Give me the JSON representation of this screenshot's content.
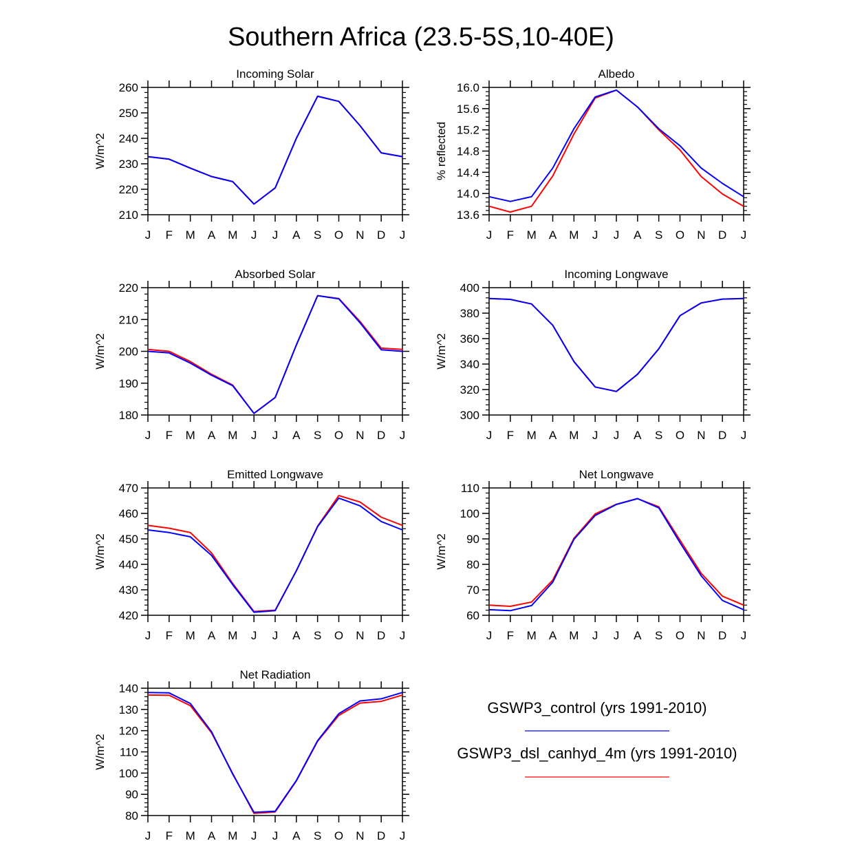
{
  "title": "Southern Africa (23.5-5S,10-40E)",
  "colors": {
    "control": "#0000ff",
    "experiment": "#ff0000",
    "axis": "#000000"
  },
  "legend": {
    "entries": [
      {
        "label": "GSWP3_control (yrs 1991-2010)",
        "color": "#0000ff"
      },
      {
        "label": "GSWP3_dsl_canhyd_4m (yrs 1991-2010)",
        "color": "#ff0000"
      }
    ]
  },
  "chart_data": [
    {
      "type": "line",
      "title": "Incoming Solar",
      "ylabel": "W/m^2",
      "categories": [
        "J",
        "F",
        "M",
        "A",
        "M",
        "J",
        "J",
        "A",
        "S",
        "O",
        "N",
        "D",
        "J"
      ],
      "ylim": [
        210,
        260
      ],
      "yticks": [
        "210",
        "220",
        "230",
        "240",
        "250",
        "260"
      ],
      "series": [
        {
          "name": "GSWP3_control (yrs 1991-2010)",
          "color": "#0000ff",
          "values": [
            232.8,
            231.8,
            228.3,
            225.0,
            223.0,
            214.2,
            220.5,
            240.0,
            256.5,
            254.5,
            245.0,
            234.3,
            232.8
          ]
        },
        {
          "name": "GSWP3_dsl_canhyd_4m (yrs 1991-2010)",
          "color": "#ff0000",
          "values": [
            232.8,
            231.8,
            228.3,
            225.0,
            223.0,
            214.2,
            220.5,
            240.0,
            256.5,
            254.5,
            245.0,
            234.3,
            232.8
          ]
        }
      ]
    },
    {
      "type": "line",
      "title": "Albedo",
      "ylabel": "% reflected",
      "categories": [
        "J",
        "F",
        "M",
        "A",
        "M",
        "J",
        "J",
        "A",
        "S",
        "O",
        "N",
        "D",
        "J"
      ],
      "ylim": [
        13.6,
        16.0
      ],
      "yticks": [
        "13.6",
        "14.0",
        "14.4",
        "14.8",
        "15.2",
        "15.6",
        "16.0"
      ],
      "series": [
        {
          "name": "GSWP3_control (yrs 1991-2010)",
          "color": "#0000ff",
          "values": [
            13.94,
            13.85,
            13.94,
            14.48,
            15.22,
            15.82,
            15.95,
            15.63,
            15.22,
            14.9,
            14.48,
            14.19,
            13.94
          ]
        },
        {
          "name": "GSWP3_dsl_canhyd_4m (yrs 1991-2010)",
          "color": "#ff0000",
          "values": [
            13.76,
            13.65,
            13.76,
            14.33,
            15.12,
            15.8,
            15.95,
            15.63,
            15.2,
            14.82,
            14.32,
            13.99,
            13.76
          ]
        }
      ]
    },
    {
      "type": "line",
      "title": "Absorbed Solar",
      "ylabel": "W/m^2",
      "categories": [
        "J",
        "F",
        "M",
        "A",
        "M",
        "J",
        "J",
        "A",
        "S",
        "O",
        "N",
        "D",
        "J"
      ],
      "ylim": [
        180,
        220
      ],
      "yticks": [
        "180",
        "190",
        "200",
        "210",
        "220"
      ],
      "series": [
        {
          "name": "GSWP3_control (yrs 1991-2010)",
          "color": "#0000ff",
          "values": [
            200.0,
            199.5,
            196.3,
            192.5,
            189.2,
            180.5,
            185.5,
            202.0,
            217.5,
            216.5,
            209.0,
            200.5,
            200.0
          ]
        },
        {
          "name": "GSWP3_dsl_canhyd_4m (yrs 1991-2010)",
          "color": "#ff0000",
          "values": [
            200.6,
            200.0,
            196.8,
            192.8,
            189.4,
            180.5,
            185.5,
            202.0,
            217.5,
            216.6,
            209.4,
            201.0,
            200.6
          ]
        }
      ]
    },
    {
      "type": "line",
      "title": "Incoming Longwave",
      "ylabel": "W/m^2",
      "categories": [
        "J",
        "F",
        "M",
        "A",
        "M",
        "J",
        "J",
        "A",
        "S",
        "O",
        "N",
        "D",
        "J"
      ],
      "ylim": [
        300,
        400
      ],
      "yticks": [
        "300",
        "320",
        "340",
        "360",
        "380",
        "400"
      ],
      "series": [
        {
          "name": "GSWP3_control (yrs 1991-2010)",
          "color": "#0000ff",
          "values": [
            391.5,
            390.8,
            387.2,
            370.5,
            342.0,
            322.0,
            318.5,
            332.0,
            352.0,
            378.0,
            388.0,
            391.0,
            391.5
          ]
        },
        {
          "name": "GSWP3_dsl_canhyd_4m (yrs 1991-2010)",
          "color": "#ff0000",
          "values": [
            391.5,
            390.8,
            387.2,
            370.5,
            342.0,
            322.0,
            318.5,
            332.0,
            352.0,
            378.0,
            388.0,
            391.0,
            391.5
          ]
        }
      ]
    },
    {
      "type": "line",
      "title": "Emitted Longwave",
      "ylabel": "W/m^2",
      "categories": [
        "J",
        "F",
        "M",
        "A",
        "M",
        "J",
        "J",
        "A",
        "S",
        "O",
        "N",
        "D",
        "J"
      ],
      "ylim": [
        420,
        470
      ],
      "yticks": [
        "420",
        "430",
        "440",
        "450",
        "460",
        "470"
      ],
      "series": [
        {
          "name": "GSWP3_control (yrs 1991-2010)",
          "color": "#0000ff",
          "values": [
            453.5,
            452.5,
            450.8,
            443.5,
            432.0,
            421.2,
            421.8,
            437.5,
            454.8,
            466.0,
            463.0,
            456.8,
            453.5
          ]
        },
        {
          "name": "GSWP3_dsl_canhyd_4m (yrs 1991-2010)",
          "color": "#ff0000",
          "values": [
            455.3,
            454.2,
            452.5,
            444.5,
            432.5,
            421.5,
            422.0,
            437.5,
            455.0,
            467.0,
            464.5,
            458.5,
            455.3
          ]
        }
      ]
    },
    {
      "type": "line",
      "title": "Net Longwave",
      "ylabel": "W/m^2",
      "categories": [
        "J",
        "F",
        "M",
        "A",
        "M",
        "J",
        "J",
        "A",
        "S",
        "O",
        "N",
        "D",
        "J"
      ],
      "ylim": [
        60,
        110
      ],
      "yticks": [
        "60",
        "70",
        "80",
        "90",
        "100",
        "110"
      ],
      "series": [
        {
          "name": "GSWP3_control (yrs 1991-2010)",
          "color": "#0000ff",
          "values": [
            62.2,
            61.8,
            63.8,
            73.0,
            89.8,
            99.2,
            103.5,
            105.8,
            102.2,
            88.5,
            75.5,
            65.8,
            62.2
          ]
        },
        {
          "name": "GSWP3_dsl_canhyd_4m (yrs 1991-2010)",
          "color": "#ff0000",
          "values": [
            64.0,
            63.5,
            65.2,
            73.8,
            90.2,
            99.8,
            103.6,
            105.8,
            102.6,
            89.5,
            76.5,
            67.5,
            64.0
          ]
        }
      ]
    },
    {
      "type": "line",
      "title": "Net Radiation",
      "ylabel": "W/m^2",
      "categories": [
        "J",
        "F",
        "M",
        "A",
        "M",
        "J",
        "J",
        "A",
        "S",
        "O",
        "N",
        "D",
        "J"
      ],
      "ylim": [
        80,
        140
      ],
      "yticks": [
        "80",
        "90",
        "100",
        "110",
        "120",
        "130",
        "140"
      ],
      "series": [
        {
          "name": "GSWP3_control (yrs 1991-2010)",
          "color": "#0000ff",
          "values": [
            138.0,
            137.8,
            132.8,
            119.5,
            99.5,
            81.5,
            82.0,
            96.5,
            115.3,
            128.0,
            134.0,
            135.0,
            138.0
          ]
        },
        {
          "name": "GSWP3_dsl_canhyd_4m (yrs 1991-2010)",
          "color": "#ff0000",
          "values": [
            136.8,
            136.7,
            131.8,
            119.0,
            99.8,
            81.0,
            81.7,
            96.3,
            115.0,
            127.2,
            133.0,
            133.8,
            136.8
          ]
        }
      ]
    }
  ]
}
